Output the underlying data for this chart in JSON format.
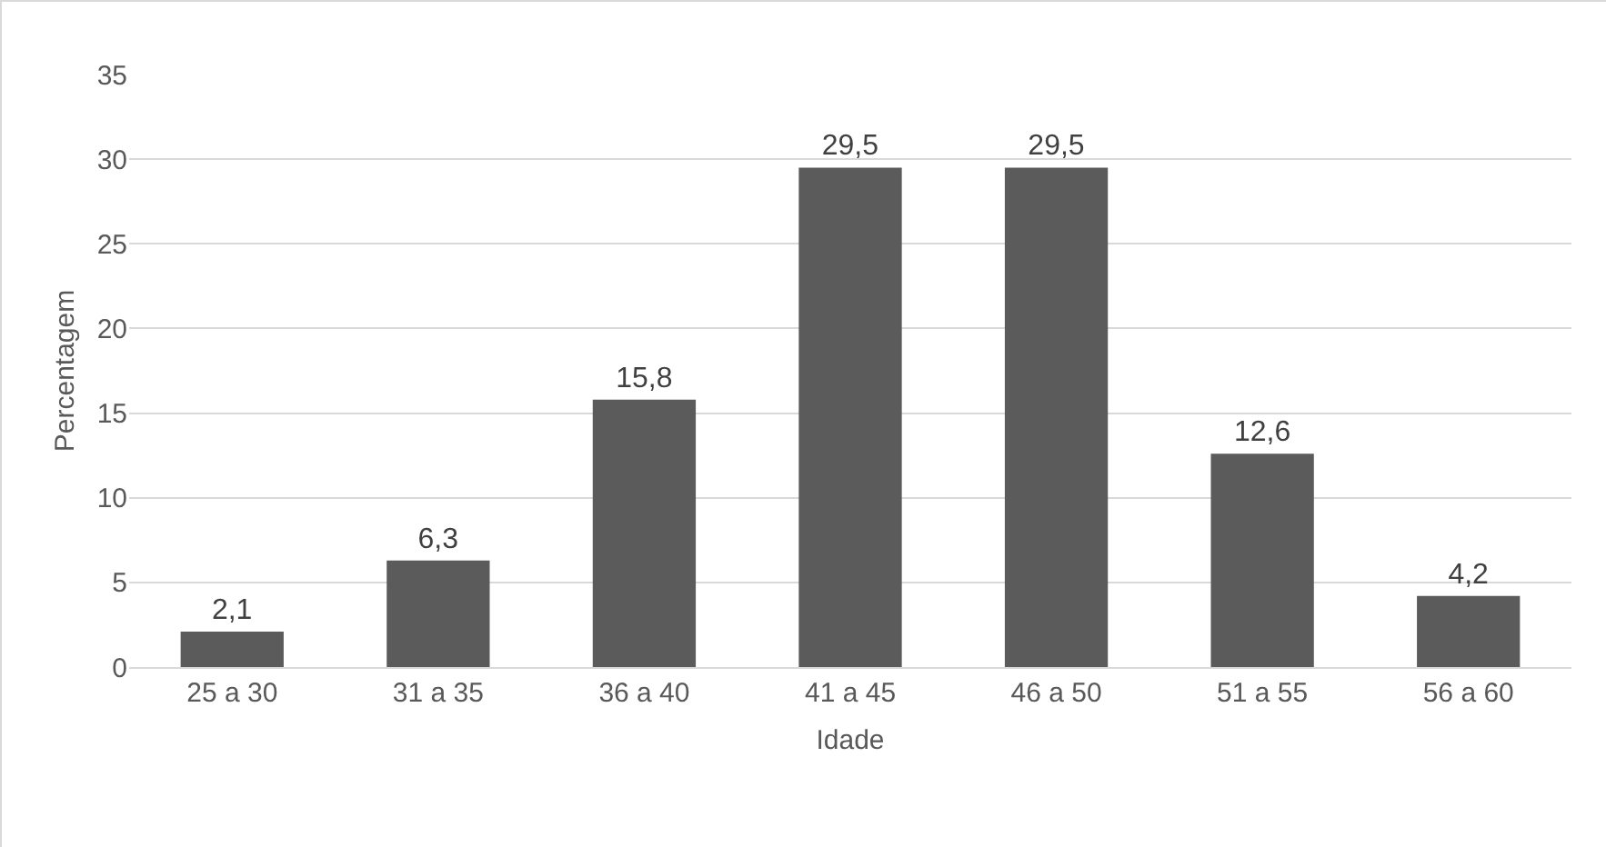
{
  "chart_data": {
    "type": "bar",
    "xlabel": "Idade",
    "ylabel": "Percentagem",
    "categories": [
      "25 a 30",
      "31 a 35",
      "36 a 40",
      "41 a 45",
      "46 a 50",
      "51 a 55",
      "56 a 60"
    ],
    "values": [
      2.1,
      6.3,
      15.8,
      29.5,
      29.5,
      12.6,
      4.2
    ],
    "value_labels": [
      "2,1",
      "6,3",
      "15,8",
      "29,5",
      "29,5",
      "12,6",
      "4,2"
    ],
    "color": "#5b5b5b",
    "ylim": [
      0,
      35
    ],
    "yticks": [
      0,
      5,
      10,
      15,
      20,
      25,
      30,
      35
    ],
    "grid": "y",
    "legend": false
  }
}
